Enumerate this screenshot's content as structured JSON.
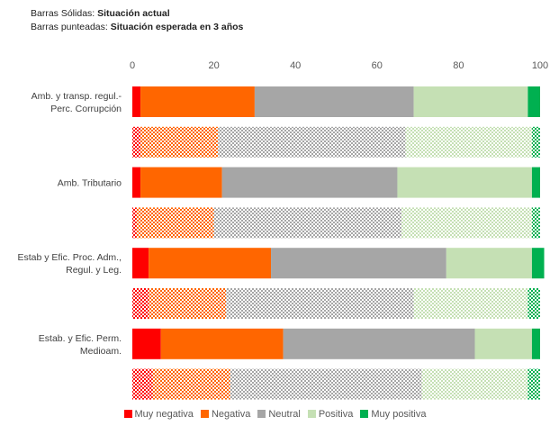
{
  "header": {
    "line1_prefix": "Barras Sólidas: ",
    "line1_bold": "Situación actual",
    "line2_prefix": "Barras punteadas: ",
    "line2_bold": "Situación esperada en 3 años"
  },
  "colors": {
    "muy_negativa": "#ff0000",
    "negativa": "#ff6600",
    "neutral": "#a6a6a6",
    "positiva": "#c5e0b4",
    "muy_positiva": "#00b050"
  },
  "chart_data": {
    "type": "bar",
    "orientation": "horizontal",
    "stacked": true,
    "xlim": [
      0,
      100
    ],
    "xticks": [
      0,
      20,
      40,
      60,
      80,
      100
    ],
    "xtick_labels": [
      "0",
      "20",
      "40",
      "60",
      "80",
      "100"
    ],
    "grid": false,
    "legend_position": "bottom",
    "groups": [
      {
        "label_lines": [
          "Amb. y transp. regul.-",
          "Perc. Corrupción"
        ]
      },
      {
        "label_lines": [
          "Amb. Tributario"
        ]
      },
      {
        "label_lines": [
          "Estab y Efic. Proc. Adm.,",
          "Regul. y Leg."
        ]
      },
      {
        "label_lines": [
          "Estab. y Efic. Perm.",
          "Medioam."
        ]
      }
    ],
    "rows": [
      {
        "group": 0,
        "style": "solid",
        "values": [
          2,
          28,
          39,
          28,
          3
        ]
      },
      {
        "group": 0,
        "style": "dotted",
        "values": [
          2,
          19,
          46,
          31,
          2
        ]
      },
      {
        "group": 1,
        "style": "solid",
        "values": [
          2,
          20,
          43,
          33,
          2
        ]
      },
      {
        "group": 1,
        "style": "dotted",
        "values": [
          1,
          19,
          46,
          32,
          2
        ]
      },
      {
        "group": 2,
        "style": "solid",
        "values": [
          4,
          30,
          43,
          21,
          3
        ]
      },
      {
        "group": 2,
        "style": "dotted",
        "values": [
          4,
          19,
          46,
          28,
          3
        ]
      },
      {
        "group": 3,
        "style": "solid",
        "values": [
          7,
          30,
          47,
          14,
          2
        ]
      },
      {
        "group": 3,
        "style": "dotted",
        "values": [
          5,
          19,
          47,
          26,
          3
        ]
      }
    ],
    "series": [
      {
        "name": "Muy negativa",
        "key": "muy_negativa"
      },
      {
        "name": "Negativa",
        "key": "negativa"
      },
      {
        "name": "Neutral",
        "key": "neutral"
      },
      {
        "name": "Positiva",
        "key": "positiva"
      },
      {
        "name": "Muy positiva",
        "key": "muy_positiva"
      }
    ]
  }
}
